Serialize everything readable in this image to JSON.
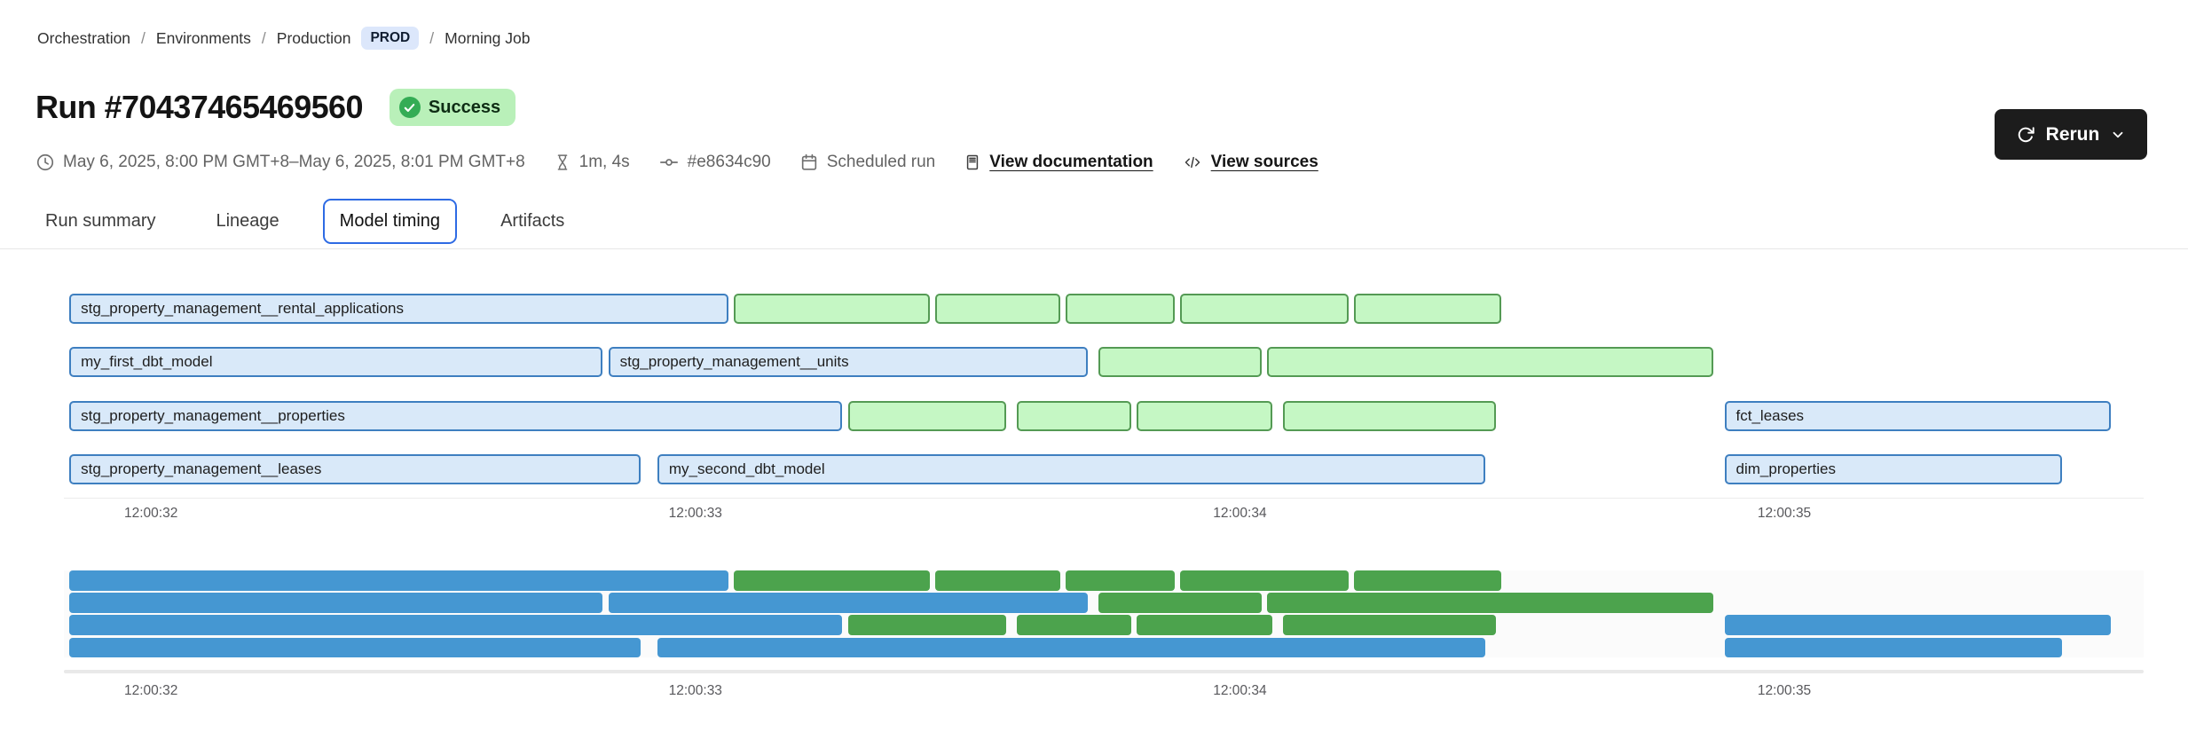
{
  "breadcrumb": {
    "separator": "/",
    "items": [
      "Orchestration",
      "Environments",
      "Production"
    ],
    "env_badge": "PROD",
    "current": "Morning Job"
  },
  "header": {
    "run_title": "Run #70437465469560",
    "status_label": "Success"
  },
  "meta": {
    "time_range": "May 6, 2025, 8:00 PM GMT+8–May 6, 2025, 8:01 PM GMT+8",
    "duration": "1m, 4s",
    "commit": "#e8634c90",
    "trigger": "Scheduled run",
    "documentation_link": "View documentation",
    "sources_link": "View sources"
  },
  "actions": {
    "rerun_label": "Rerun"
  },
  "tabs": [
    {
      "label": "Run summary",
      "active": false
    },
    {
      "label": "Lineage",
      "active": false
    },
    {
      "label": "Model timing",
      "active": true
    },
    {
      "label": "Artifacts",
      "active": false
    }
  ],
  "chart_data": {
    "type": "gantt",
    "title": "Model timing",
    "x_axis": {
      "unit": "seconds after 12:00:00",
      "xlim_seconds": [
        31.84,
        35.66
      ],
      "ticks": [
        {
          "t": 32,
          "label": "12:00:32"
        },
        {
          "t": 33,
          "label": "12:00:33"
        },
        {
          "t": 34,
          "label": "12:00:34"
        },
        {
          "t": 35,
          "label": "12:00:35"
        }
      ]
    },
    "colors": {
      "model_fill": "#D9E9F9",
      "model_border": "#3E7FC0",
      "test_fill": "#C5F7C4",
      "test_border": "#549A54",
      "minimap_model": "#4597D2",
      "minimap_test": "#4CA34D",
      "active_tab_border": "#2E6BE4",
      "status_badge_bg": "#B9F0B9",
      "status_check_bg": "#34AC55"
    },
    "rows": [
      {
        "bars": [
          {
            "label": "stg_property_management__rental_applications",
            "kind": "model",
            "start": 31.85,
            "end": 33.06
          },
          {
            "label": "",
            "kind": "test",
            "start": 33.07,
            "end": 33.43
          },
          {
            "label": "",
            "kind": "test",
            "start": 33.44,
            "end": 33.67
          },
          {
            "label": "",
            "kind": "test",
            "start": 33.68,
            "end": 33.88
          },
          {
            "label": "",
            "kind": "test",
            "start": 33.89,
            "end": 34.2
          },
          {
            "label": "",
            "kind": "test",
            "start": 34.21,
            "end": 34.48
          }
        ]
      },
      {
        "bars": [
          {
            "label": "my_first_dbt_model",
            "kind": "model",
            "start": 31.85,
            "end": 32.83
          },
          {
            "label": "stg_property_management__units",
            "kind": "model",
            "start": 32.84,
            "end": 33.72
          },
          {
            "label": "",
            "kind": "test",
            "start": 33.74,
            "end": 34.04
          },
          {
            "label": "",
            "kind": "test",
            "start": 34.05,
            "end": 34.87
          }
        ]
      },
      {
        "bars": [
          {
            "label": "stg_property_management__properties",
            "kind": "model",
            "start": 31.85,
            "end": 33.27
          },
          {
            "label": "",
            "kind": "test",
            "start": 33.28,
            "end": 33.57
          },
          {
            "label": "",
            "kind": "test",
            "start": 33.59,
            "end": 33.8
          },
          {
            "label": "",
            "kind": "test",
            "start": 33.81,
            "end": 34.06
          },
          {
            "label": "",
            "kind": "test",
            "start": 34.08,
            "end": 34.47
          },
          {
            "label": "fct_leases",
            "kind": "model",
            "start": 34.89,
            "end": 35.6
          }
        ]
      },
      {
        "bars": [
          {
            "label": "stg_property_management__leases",
            "kind": "model",
            "start": 31.85,
            "end": 32.9
          },
          {
            "label": "my_second_dbt_model",
            "kind": "model",
            "start": 32.93,
            "end": 34.45
          },
          {
            "label": "dim_properties",
            "kind": "model",
            "start": 34.89,
            "end": 35.51
          }
        ]
      }
    ]
  }
}
